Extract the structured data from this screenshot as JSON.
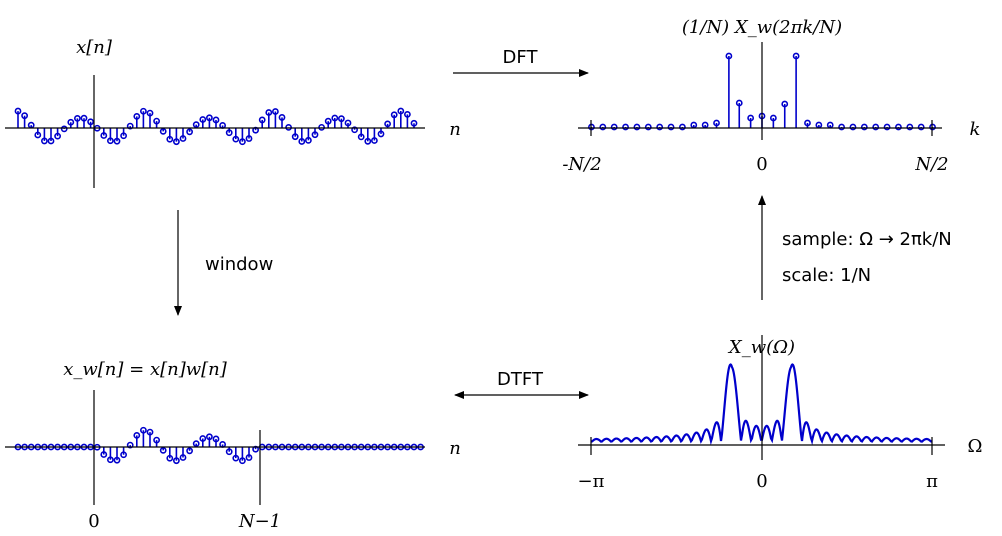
{
  "panels": {
    "signal": {
      "title": "x[n]",
      "axis_label": "n"
    },
    "windowed": {
      "title": "x_w[n] = x[n]w[n]",
      "axis_label": "n",
      "ticks": [
        "0",
        "N−1"
      ]
    },
    "dtft": {
      "title": "X_w(Ω)",
      "axis_label": "Ω",
      "ticks": [
        "−π",
        "0",
        "π"
      ]
    },
    "dft": {
      "title": "(1/N) X_w(2πk/N)",
      "axis_label": "k",
      "ticks": [
        "-N/2",
        "0",
        "N/2"
      ]
    }
  },
  "arrows": {
    "dft": "DFT",
    "window": "window",
    "dtft": "DTFT",
    "sample": "sample:  Ω → 2πk/N",
    "scale": "scale:  1/N"
  }
}
